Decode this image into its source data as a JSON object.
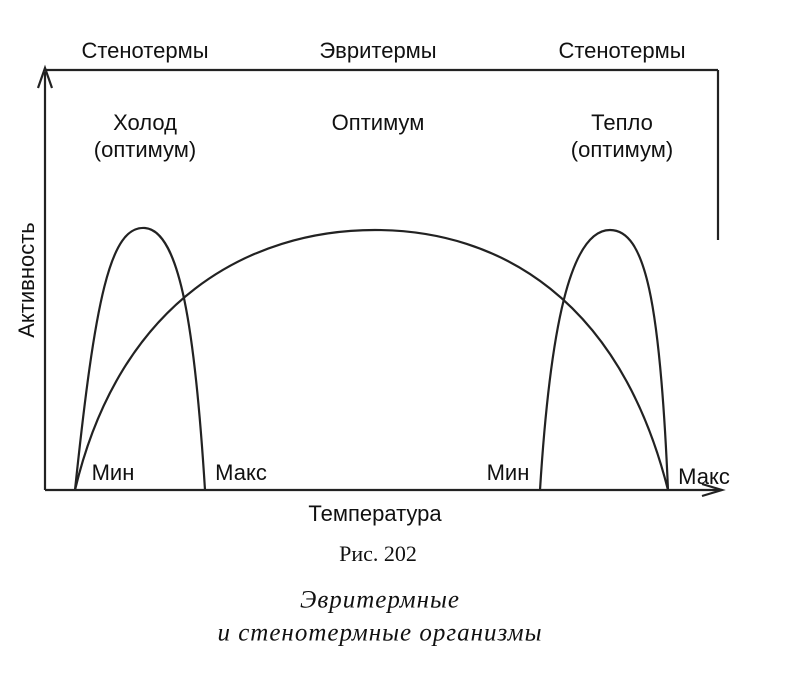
{
  "header": {
    "labels": [
      "Стенотермы",
      "Эвритермы",
      "Стенотермы"
    ]
  },
  "optima": [
    [
      "Холод",
      "(оптимум)"
    ],
    [
      "Оптимум"
    ],
    [
      "Тепло",
      "(оптимум)"
    ]
  ],
  "axes": {
    "y_label": "Активность",
    "x_label": "Температура"
  },
  "points": [
    "Мин",
    "Макс",
    "Мин",
    "Макс"
  ],
  "caption": {
    "number": "Рис. 202",
    "lines": [
      "Эвритермные",
      "и стенотермные организмы"
    ]
  }
}
